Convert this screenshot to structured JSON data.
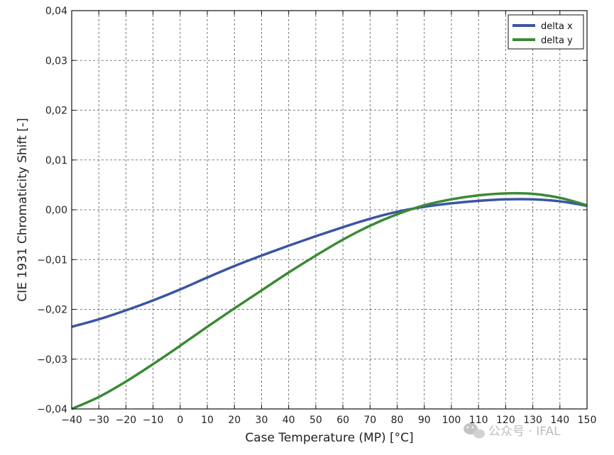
{
  "chart_data": {
    "type": "line",
    "xlabel": "Case Temperature (MP) [°C]",
    "ylabel": "CIE 1931 Chromaticity Shift  [-]",
    "xlim": [
      -40,
      150
    ],
    "ylim": [
      -0.04,
      0.04
    ],
    "grid": true,
    "grid_style": "dashed",
    "legend_position": "top-right",
    "x_ticks": [
      -40,
      -30,
      -20,
      -10,
      0,
      10,
      20,
      30,
      40,
      50,
      60,
      70,
      80,
      90,
      100,
      110,
      120,
      130,
      140,
      150
    ],
    "x_tick_labels": [
      "−40",
      "−30",
      "−20",
      "−10",
      "0",
      "10",
      "20",
      "30",
      "40",
      "50",
      "60",
      "70",
      "80",
      "90",
      "100",
      "110",
      "120",
      "130",
      "140",
      "150"
    ],
    "y_ticks": [
      -0.04,
      -0.03,
      -0.02,
      -0.01,
      0.0,
      0.01,
      0.02,
      0.03,
      0.04
    ],
    "y_tick_labels": [
      "−0,04",
      "−0,03",
      "−0,02",
      "−0,01",
      "0,00",
      "0,01",
      "0,02",
      "0,03",
      "0,04"
    ],
    "x": [
      -40,
      -30,
      -20,
      -10,
      0,
      10,
      20,
      30,
      40,
      50,
      60,
      70,
      80,
      90,
      100,
      110,
      120,
      130,
      140,
      150
    ],
    "series": [
      {
        "name": "delta x",
        "color": "#3a55a4",
        "values": [
          -0.0235,
          -0.022,
          -0.0202,
          -0.0182,
          -0.016,
          -0.0136,
          -0.0113,
          -0.0092,
          -0.0072,
          -0.0053,
          -0.0035,
          -0.0018,
          -0.0004,
          0.0006,
          0.0013,
          0.0018,
          0.0021,
          0.0021,
          0.0017,
          0.0008
        ]
      },
      {
        "name": "delta y",
        "color": "#3b8a36",
        "values": [
          -0.04,
          -0.0376,
          -0.0345,
          -0.031,
          -0.0273,
          -0.0235,
          -0.0198,
          -0.0162,
          -0.0126,
          -0.0092,
          -0.006,
          -0.0032,
          -0.0009,
          0.0009,
          0.0021,
          0.0029,
          0.0033,
          0.0032,
          0.0024,
          0.0009
        ]
      }
    ]
  },
  "watermark": {
    "text": "公众号 · IFAL",
    "icon": "wechat-icon"
  }
}
